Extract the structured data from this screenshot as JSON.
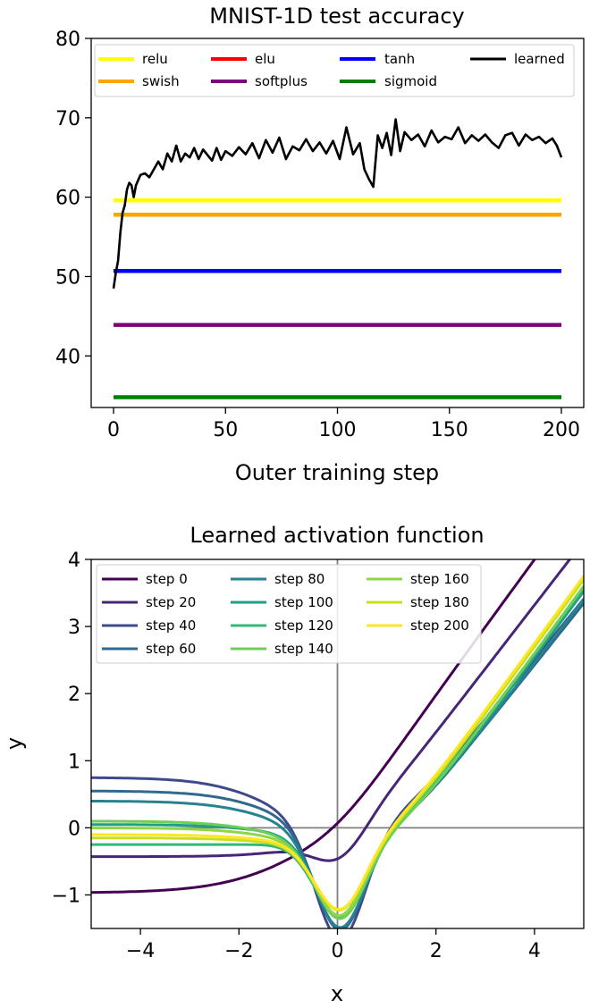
{
  "chart_data": [
    {
      "type": "line",
      "title": "MNIST-1D test accuracy",
      "xlabel": "Outer training step",
      "ylabel": "",
      "xlim": [
        -10,
        210
      ],
      "ylim": [
        33.5,
        80
      ],
      "xticks": [
        0,
        50,
        100,
        150,
        200
      ],
      "xtick_labels": [
        "0",
        "50",
        "100",
        "150",
        "200"
      ],
      "yticks": [
        40,
        50,
        60,
        70,
        80
      ],
      "ytick_labels": [
        "40",
        "50",
        "60",
        "70",
        "80"
      ],
      "legend_position": "top",
      "series": [
        {
          "name": "relu",
          "color": "#ffff00",
          "x": [
            0,
            200
          ],
          "values": [
            59.6,
            59.6
          ]
        },
        {
          "name": "swish",
          "color": "#ffa500",
          "x": [
            0,
            200
          ],
          "values": [
            57.8,
            57.8
          ]
        },
        {
          "name": "elu",
          "color": "#ff0000",
          "x": [
            0,
            200
          ],
          "values": [
            50.7,
            50.7
          ]
        },
        {
          "name": "softplus",
          "color": "#800080",
          "x": [
            0,
            200
          ],
          "values": [
            43.9,
            43.9
          ]
        },
        {
          "name": "tanh",
          "color": "#0000ff",
          "x": [
            0,
            200
          ],
          "values": [
            50.7,
            50.7
          ]
        },
        {
          "name": "sigmoid",
          "color": "#008000",
          "x": [
            0,
            200
          ],
          "values": [
            34.8,
            34.8
          ]
        },
        {
          "name": "learned",
          "color": "#000000",
          "x": [
            0,
            1,
            2,
            3,
            4,
            5,
            6,
            7,
            8,
            9,
            10,
            12,
            14,
            16,
            18,
            20,
            22,
            24,
            26,
            28,
            30,
            32,
            34,
            36,
            38,
            40,
            42,
            44,
            46,
            48,
            50,
            53,
            56,
            59,
            62,
            65,
            68,
            71,
            74,
            77,
            80,
            83,
            86,
            89,
            92,
            95,
            98,
            101,
            104,
            107,
            110,
            112,
            114,
            116,
            118,
            120,
            122,
            124,
            126,
            128,
            130,
            133,
            136,
            139,
            142,
            145,
            148,
            151,
            154,
            157,
            160,
            163,
            166,
            169,
            172,
            175,
            178,
            181,
            184,
            187,
            190,
            193,
            196,
            198,
            200
          ],
          "values": [
            48.5,
            50.5,
            52,
            55.5,
            58,
            59,
            61,
            61.8,
            61.5,
            60,
            61.5,
            62.8,
            63,
            62.5,
            63.5,
            64.5,
            63.5,
            65.5,
            64.5,
            66.5,
            64.5,
            65.5,
            65,
            66.2,
            64.8,
            66,
            65.3,
            64.6,
            66.2,
            64.7,
            65.8,
            65.2,
            66.3,
            65.4,
            66.8,
            64.9,
            67.2,
            65.6,
            67.5,
            64.8,
            66.4,
            65.9,
            67.3,
            65.8,
            66.9,
            65.5,
            67.1,
            64.8,
            68.8,
            65.4,
            66.8,
            63.5,
            62.3,
            61.3,
            67.8,
            66.2,
            68.1,
            65.3,
            69.8,
            65.8,
            68.2,
            67.2,
            67.9,
            66.4,
            68.4,
            66.9,
            67.6,
            67.3,
            68.8,
            66.8,
            67.8,
            67.1,
            67.9,
            66.9,
            66.2,
            67.8,
            68.1,
            66.5,
            67.9,
            67.2,
            67.6,
            66.8,
            67.4,
            66.5,
            65
          ]
        }
      ]
    },
    {
      "type": "line",
      "title": "Learned activation function",
      "xlabel": "x",
      "ylabel": "y",
      "xlim": [
        -5,
        5
      ],
      "ylim": [
        -1.5,
        4
      ],
      "xticks": [
        -4,
        -2,
        0,
        2,
        4
      ],
      "xtick_labels": [
        "−4",
        "−2",
        "0",
        "2",
        "4"
      ],
      "yticks": [
        -1,
        0,
        1,
        2,
        3,
        4
      ],
      "ytick_labels": [
        "−1",
        "0",
        "1",
        "2",
        "3",
        "4"
      ],
      "reference_lines": {
        "x": 0,
        "y": 0
      },
      "legend_position": "top-left",
      "series": [
        {
          "name": "step 0",
          "color": "#440154",
          "params": {
            "L": -0.97,
            "kL": 1.2,
            "x0": -0.9,
            "D": 0.0,
            "w": 0.5,
            "c": 0,
            "s": 1.0,
            "x1": 0.0
          }
        },
        {
          "name": "step 20",
          "color": "#482677",
          "params": {
            "L": -0.33,
            "kL": 1.6,
            "x0": -0.4,
            "D": 0.4,
            "w": 0.5,
            "c": -0.1,
            "s": 0.95,
            "x1": 0.4
          }
        },
        {
          "name": "step 40",
          "color": "#3e4a89",
          "params": {
            "L": 0.85,
            "kL": 1.5,
            "x0": -1.3,
            "D": 1.7,
            "w": 0.5,
            "c": -0.1,
            "s": 0.9,
            "x1": 1.1
          }
        },
        {
          "name": "step 60",
          "color": "#31688e",
          "params": {
            "L": 0.7,
            "kL": 1.5,
            "x0": -1.2,
            "D": 1.5,
            "w": 0.5,
            "c": -0.15,
            "s": 0.92,
            "x1": 1.2
          }
        },
        {
          "name": "step 80",
          "color": "#26828e",
          "params": {
            "L": 0.6,
            "kL": 1.5,
            "x0": -1.2,
            "D": 1.4,
            "w": 0.5,
            "c": -0.2,
            "s": 0.95,
            "x1": 1.2
          }
        },
        {
          "name": "step 100",
          "color": "#1f9e89",
          "params": {
            "L": 0.25,
            "kL": 1.5,
            "x0": -1.2,
            "D": 1.2,
            "w": 0.5,
            "c": -0.2,
            "s": 0.98,
            "x1": 1.2
          }
        },
        {
          "name": "step 120",
          "color": "#35b779",
          "params": {
            "L": 0.0,
            "kL": 1.5,
            "x0": -1.2,
            "D": 1.1,
            "w": 0.5,
            "c": -0.25,
            "s": 0.98,
            "x1": 1.1
          }
        },
        {
          "name": "step 140",
          "color": "#6ece58",
          "params": {
            "L": 0.4,
            "kL": 1.5,
            "x0": -1.2,
            "D": 1.15,
            "w": 0.5,
            "c": -0.3,
            "s": 1.0,
            "x1": 1.1
          }
        },
        {
          "name": "step 160",
          "color": "#8fd744",
          "params": {
            "L": 0.3,
            "kL": 1.5,
            "x0": -1.2,
            "D": 1.1,
            "w": 0.5,
            "c": -0.3,
            "s": 1.0,
            "x1": 1.0
          }
        },
        {
          "name": "step 180",
          "color": "#c8e020",
          "params": {
            "L": 0.15,
            "kL": 1.5,
            "x0": -1.2,
            "D": 1.0,
            "w": 0.5,
            "c": -0.3,
            "s": 1.0,
            "x1": 1.0
          }
        },
        {
          "name": "step 200",
          "color": "#fde725",
          "params": {
            "L": 0.2,
            "kL": 1.5,
            "x0": -1.2,
            "D": 1.0,
            "w": 0.5,
            "c": -0.3,
            "s": 1.0,
            "x1": 0.95
          }
        }
      ]
    }
  ]
}
